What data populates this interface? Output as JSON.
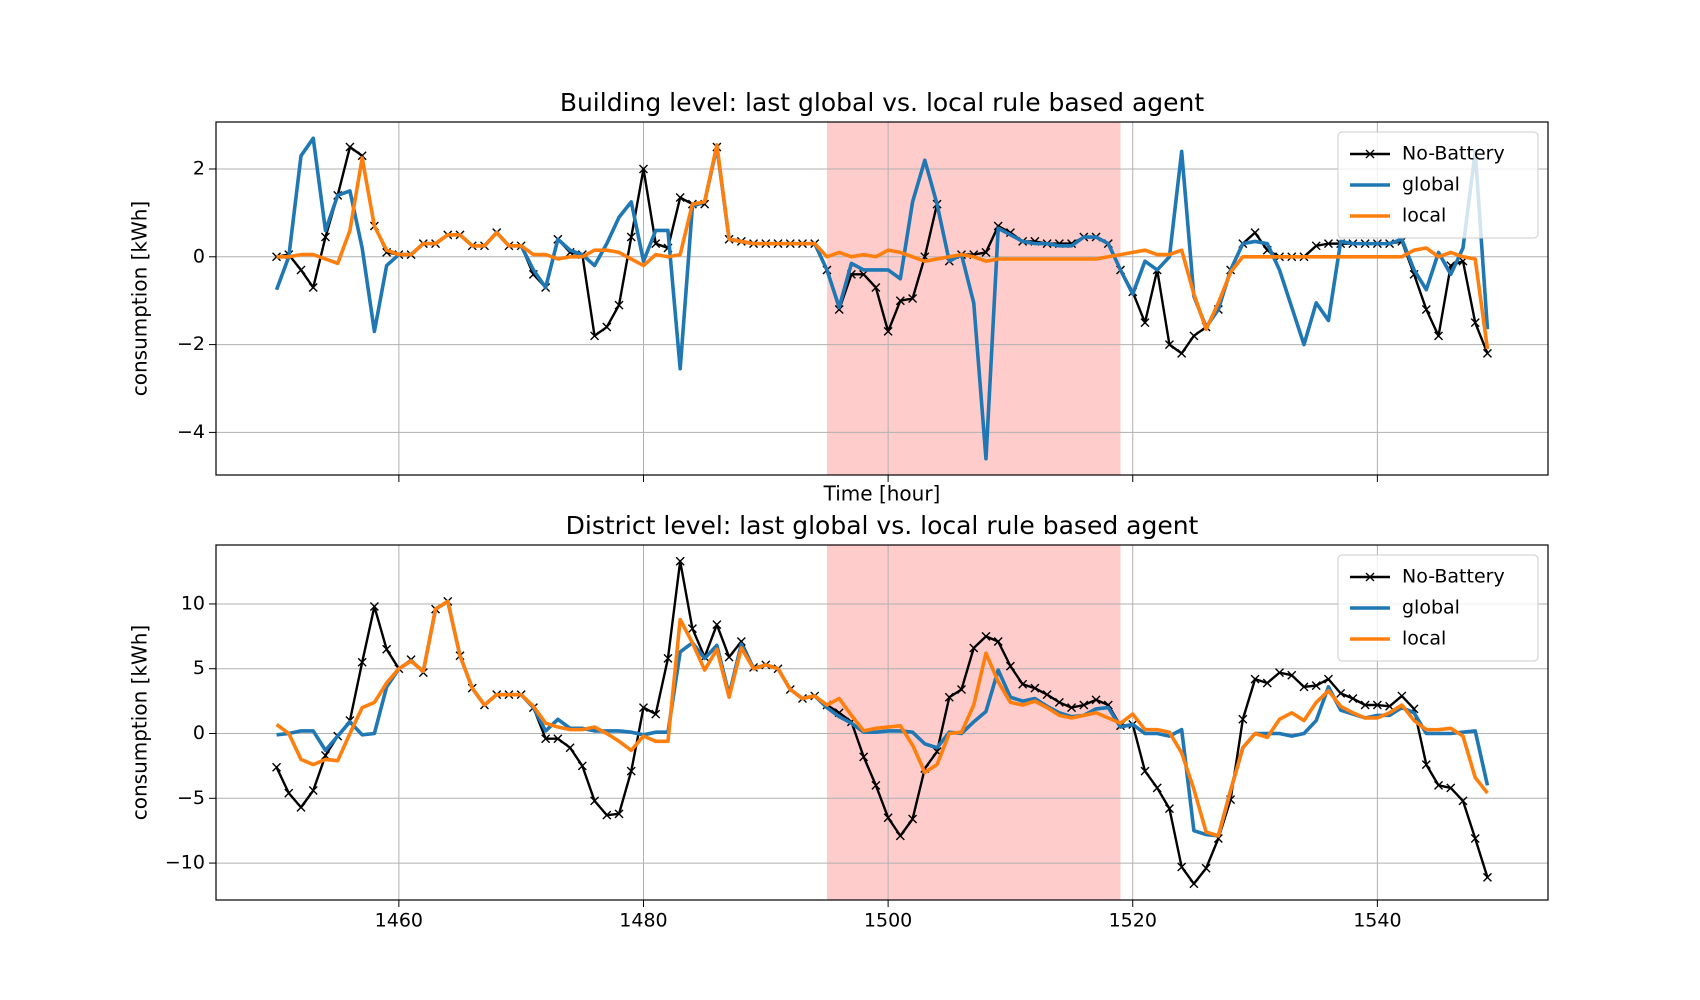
{
  "chart_data": [
    {
      "type": "line",
      "title": "Building level: last global vs. local rule based agent",
      "xlabel": "Time [hour]",
      "ylabel": "consumption [kWh]",
      "xlim": [
        1445.05,
        1553.95
      ],
      "ylim": [
        -4.97,
        3.07
      ],
      "xticks": [
        1460,
        1480,
        1500,
        1520,
        1540
      ],
      "show_xtick_labels": false,
      "yticks": [
        {
          "value": -4,
          "label": "−4"
        },
        {
          "value": -2,
          "label": "−2"
        },
        0,
        2
      ],
      "grid": true,
      "legend": "upper right",
      "span": [
        1495,
        1519
      ],
      "span_color": "#ffcccc",
      "x": [
        1450,
        1451,
        1452,
        1453,
        1454,
        1455,
        1456,
        1457,
        1458,
        1459,
        1460,
        1461,
        1462,
        1463,
        1464,
        1465,
        1466,
        1467,
        1468,
        1469,
        1470,
        1471,
        1472,
        1473,
        1474,
        1475,
        1476,
        1477,
        1478,
        1479,
        1480,
        1481,
        1482,
        1483,
        1484,
        1485,
        1486,
        1487,
        1488,
        1489,
        1490,
        1491,
        1492,
        1493,
        1494,
        1495,
        1496,
        1497,
        1498,
        1499,
        1500,
        1501,
        1502,
        1503,
        1504,
        1505,
        1506,
        1507,
        1508,
        1509,
        1510,
        1511,
        1512,
        1513,
        1514,
        1515,
        1516,
        1517,
        1518,
        1519,
        1520,
        1521,
        1522,
        1523,
        1524,
        1525,
        1526,
        1527,
        1528,
        1529,
        1530,
        1531,
        1532,
        1533,
        1534,
        1535,
        1536,
        1537,
        1538,
        1539,
        1540,
        1541,
        1542,
        1543,
        1544,
        1545,
        1546,
        1547,
        1548,
        1549
      ],
      "series": [
        {
          "name": "No-Battery",
          "color": "#000000",
          "marker": "x",
          "values": [
            0.0,
            0.05,
            -0.3,
            -0.7,
            0.45,
            1.4,
            2.5,
            2.3,
            0.7,
            0.1,
            0.05,
            0.05,
            0.3,
            0.3,
            0.5,
            0.5,
            0.25,
            0.25,
            0.55,
            0.25,
            0.25,
            -0.4,
            -0.7,
            0.4,
            0.1,
            0.05,
            -1.8,
            -1.6,
            -1.1,
            0.45,
            2.0,
            0.3,
            0.2,
            1.35,
            1.2,
            1.2,
            2.5,
            0.4,
            0.35,
            0.3,
            0.3,
            0.3,
            0.3,
            0.3,
            0.3,
            -0.3,
            -1.2,
            -0.4,
            -0.4,
            -0.7,
            -1.7,
            -1.0,
            -0.95,
            0.0,
            1.2,
            -0.1,
            0.05,
            0.05,
            0.1,
            0.7,
            0.55,
            0.35,
            0.35,
            0.3,
            0.3,
            0.3,
            0.45,
            0.45,
            0.3,
            -0.3,
            -0.8,
            -1.5,
            -0.3,
            -2.0,
            -2.2,
            -1.8,
            -1.6,
            -1.2,
            -0.3,
            0.3,
            0.55,
            0.15,
            0.0,
            0.0,
            0.0,
            0.25,
            0.3,
            0.3,
            0.3,
            0.3,
            0.3,
            0.3,
            0.35,
            -0.4,
            -1.2,
            -1.8,
            -0.2,
            -0.1,
            -1.5,
            -2.2
          ]
        },
        {
          "name": "global",
          "color": "#1f77b4",
          "values": [
            -0.75,
            0.0,
            2.3,
            2.7,
            0.6,
            1.4,
            1.5,
            0.2,
            -1.7,
            -0.2,
            0.05,
            0.05,
            0.3,
            0.3,
            0.5,
            0.5,
            0.25,
            0.25,
            0.55,
            0.25,
            0.25,
            -0.3,
            -0.7,
            0.4,
            0.15,
            0.05,
            -0.2,
            0.3,
            0.9,
            1.25,
            -0.1,
            0.6,
            0.6,
            -2.55,
            1.15,
            1.25,
            2.5,
            0.4,
            0.35,
            0.3,
            0.3,
            0.3,
            0.3,
            0.3,
            0.3,
            -0.3,
            -1.15,
            -0.15,
            -0.3,
            -0.3,
            -0.3,
            -0.5,
            1.25,
            2.2,
            1.2,
            -0.1,
            0.05,
            -1.05,
            -4.6,
            0.65,
            0.5,
            0.35,
            0.3,
            0.3,
            0.25,
            0.25,
            0.45,
            0.45,
            0.3,
            -0.3,
            -0.85,
            -0.1,
            -0.3,
            0.0,
            2.4,
            -0.9,
            -1.6,
            -1.2,
            -0.3,
            0.3,
            0.35,
            0.3,
            -0.3,
            -1.15,
            -2.0,
            -1.05,
            -1.45,
            0.35,
            0.3,
            0.3,
            0.3,
            0.3,
            0.4,
            -0.3,
            -0.75,
            0.1,
            -0.4,
            0.2,
            2.4,
            -1.65
          ]
        },
        {
          "name": "local",
          "color": "#ff7f0e",
          "values": [
            0.0,
            0.0,
            0.05,
            0.05,
            -0.05,
            -0.15,
            0.6,
            2.25,
            0.7,
            0.15,
            0.05,
            0.05,
            0.3,
            0.3,
            0.5,
            0.5,
            0.25,
            0.25,
            0.55,
            0.25,
            0.25,
            0.05,
            0.05,
            -0.05,
            0.0,
            0.0,
            0.15,
            0.15,
            0.1,
            -0.05,
            -0.2,
            0.05,
            0.0,
            0.05,
            1.2,
            1.25,
            2.55,
            0.4,
            0.35,
            0.3,
            0.3,
            0.3,
            0.3,
            0.3,
            0.3,
            0.0,
            0.1,
            0.0,
            0.05,
            0.0,
            0.15,
            0.1,
            0.0,
            -0.1,
            -0.05,
            0.0,
            0.05,
            0.0,
            -0.1,
            -0.05,
            -0.05,
            -0.05,
            -0.05,
            -0.05,
            -0.05,
            -0.05,
            -0.05,
            -0.05,
            0.0,
            0.05,
            0.1,
            0.15,
            0.05,
            0.05,
            0.15,
            -0.85,
            -1.65,
            -1.05,
            -0.35,
            0.0,
            0.0,
            0.0,
            0.0,
            0.0,
            0.0,
            0.0,
            0.0,
            0.0,
            0.0,
            0.0,
            0.0,
            0.0,
            0.0,
            0.15,
            0.2,
            0.0,
            0.1,
            0.0,
            -0.05,
            -2.1
          ]
        }
      ]
    },
    {
      "type": "line",
      "title": "District level: last global vs. local rule based agent",
      "ylabel": "consumption [kWh]",
      "xlim": [
        1445.05,
        1553.95
      ],
      "ylim": [
        -12.85,
        14.55
      ],
      "xticks": [
        1460,
        1480,
        1500,
        1520,
        1540
      ],
      "show_xtick_labels": true,
      "yticks": [
        {
          "value": -10,
          "label": "−10"
        },
        {
          "value": -5,
          "label": "−5"
        },
        0,
        5,
        10
      ],
      "grid": true,
      "legend": "upper right",
      "span": [
        1495,
        1519
      ],
      "span_color": "#ffcccc",
      "x": [
        1450,
        1451,
        1452,
        1453,
        1454,
        1455,
        1456,
        1457,
        1458,
        1459,
        1460,
        1461,
        1462,
        1463,
        1464,
        1465,
        1466,
        1467,
        1468,
        1469,
        1470,
        1471,
        1472,
        1473,
        1474,
        1475,
        1476,
        1477,
        1478,
        1479,
        1480,
        1481,
        1482,
        1483,
        1484,
        1485,
        1486,
        1487,
        1488,
        1489,
        1490,
        1491,
        1492,
        1493,
        1494,
        1495,
        1496,
        1497,
        1498,
        1499,
        1500,
        1501,
        1502,
        1503,
        1504,
        1505,
        1506,
        1507,
        1508,
        1509,
        1510,
        1511,
        1512,
        1513,
        1514,
        1515,
        1516,
        1517,
        1518,
        1519,
        1520,
        1521,
        1522,
        1523,
        1524,
        1525,
        1526,
        1527,
        1528,
        1529,
        1530,
        1531,
        1532,
        1533,
        1534,
        1535,
        1536,
        1537,
        1538,
        1539,
        1540,
        1541,
        1542,
        1543,
        1544,
        1545,
        1546,
        1547,
        1548,
        1549
      ],
      "series": [
        {
          "name": "No-Battery",
          "color": "#000000",
          "marker": "x",
          "values": [
            -2.6,
            -4.6,
            -5.7,
            -4.4,
            -1.7,
            -0.2,
            1.0,
            5.5,
            9.8,
            6.5,
            5.0,
            5.7,
            4.7,
            9.6,
            10.2,
            6.0,
            3.5,
            2.2,
            3.0,
            3.0,
            3.0,
            2.0,
            -0.4,
            -0.4,
            -1.1,
            -2.5,
            -5.2,
            -6.3,
            -6.2,
            -2.9,
            2.0,
            1.5,
            5.8,
            13.3,
            8.1,
            5.9,
            8.4,
            5.9,
            7.1,
            5.1,
            5.3,
            5.0,
            3.4,
            2.7,
            2.9,
            2.2,
            1.6,
            0.9,
            -1.8,
            -4.0,
            -6.5,
            -7.9,
            -6.6,
            -2.7,
            -1.4,
            2.8,
            3.4,
            6.6,
            7.5,
            7.1,
            5.2,
            3.8,
            3.5,
            3.0,
            2.4,
            2.0,
            2.2,
            2.6,
            2.2,
            0.6,
            0.7,
            -2.9,
            -4.2,
            -5.8,
            -10.3,
            -11.6,
            -10.4,
            -8.1,
            -5.1,
            1.1,
            4.2,
            3.9,
            4.7,
            4.5,
            3.6,
            3.7,
            4.2,
            3.1,
            2.7,
            2.2,
            2.2,
            2.1,
            2.9,
            1.9,
            -2.4,
            -4.0,
            -4.2,
            -5.2,
            -8.1,
            -11.1
          ]
        },
        {
          "name": "global",
          "color": "#1f77b4",
          "values": [
            -0.1,
            0.0,
            0.2,
            0.2,
            -1.3,
            -0.2,
            0.9,
            -0.1,
            0.0,
            3.6,
            5.0,
            5.6,
            4.8,
            9.6,
            10.2,
            6.0,
            3.5,
            2.2,
            3.0,
            3.0,
            3.0,
            2.0,
            0.2,
            1.1,
            0.4,
            0.4,
            0.2,
            0.2,
            0.2,
            0.1,
            -0.1,
            0.1,
            0.1,
            6.3,
            7.0,
            5.8,
            6.8,
            3.0,
            6.9,
            5.0,
            5.3,
            5.0,
            3.4,
            2.7,
            2.9,
            2.0,
            1.3,
            0.8,
            0.1,
            0.1,
            0.2,
            0.2,
            0.1,
            -0.8,
            -1.1,
            0.1,
            0.0,
            0.9,
            1.7,
            4.9,
            2.8,
            2.5,
            2.7,
            2.1,
            1.6,
            1.3,
            1.4,
            1.9,
            2.0,
            0.5,
            0.7,
            0.0,
            0.0,
            -0.2,
            0.3,
            -7.5,
            -7.8,
            -7.9,
            -4.4,
            -1.1,
            0.0,
            0.0,
            0.0,
            -0.2,
            0.0,
            1.0,
            3.6,
            1.8,
            1.5,
            1.2,
            1.4,
            1.4,
            2.0,
            1.6,
            0.0,
            0.0,
            0.0,
            0.1,
            0.2,
            -4.0
          ]
        },
        {
          "name": "local",
          "color": "#ff7f0e",
          "values": [
            0.7,
            0.0,
            -2.0,
            -2.4,
            -2.0,
            -2.1,
            0.0,
            2.0,
            2.4,
            3.9,
            5.0,
            5.6,
            4.8,
            9.6,
            10.2,
            6.0,
            3.5,
            2.2,
            3.0,
            3.0,
            3.0,
            2.1,
            0.8,
            0.5,
            0.3,
            0.3,
            0.5,
            0.0,
            -0.6,
            -1.3,
            -0.2,
            -0.6,
            -0.6,
            8.8,
            7.0,
            4.9,
            6.5,
            2.8,
            6.6,
            5.0,
            5.3,
            5.0,
            3.4,
            2.7,
            2.9,
            2.2,
            2.7,
            1.4,
            0.2,
            0.4,
            0.5,
            0.6,
            -0.9,
            -3.0,
            -2.4,
            0.0,
            0.1,
            2.2,
            6.2,
            4.0,
            2.4,
            2.2,
            2.5,
            2.0,
            1.4,
            1.2,
            1.4,
            1.6,
            1.2,
            0.8,
            1.5,
            0.3,
            0.3,
            0.1,
            -1.5,
            -4.3,
            -7.6,
            -7.9,
            -4.4,
            -1.1,
            0.0,
            -0.3,
            1.1,
            1.6,
            1.0,
            2.4,
            3.3,
            2.1,
            1.6,
            1.2,
            1.2,
            1.6,
            2.2,
            1.0,
            0.3,
            0.3,
            0.4,
            -0.2,
            -3.4,
            -4.6
          ]
        }
      ]
    }
  ]
}
